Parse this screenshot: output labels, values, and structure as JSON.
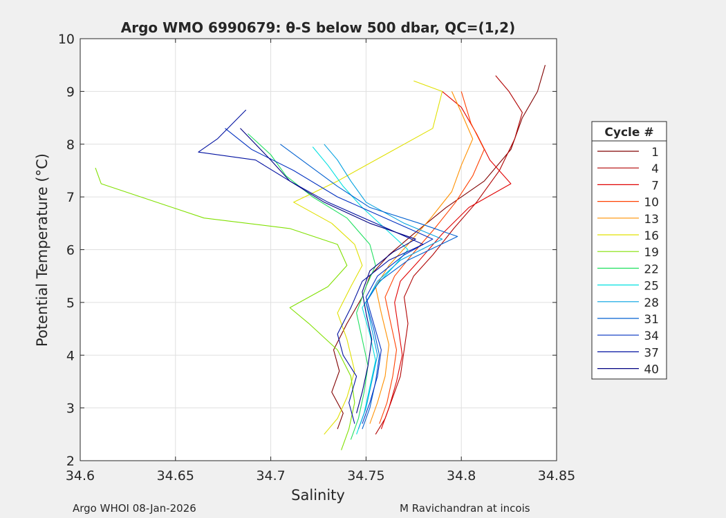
{
  "chart_data": {
    "type": "line",
    "title": "Argo WMO 6990679: θ-S below 500 dbar,  QC=(1,2)",
    "xlabel": "Salinity",
    "ylabel": "Potential Temperature (°C)",
    "xlim": [
      34.6,
      34.85
    ],
    "ylim": [
      2,
      10
    ],
    "xticks": [
      "34.6",
      "34.65",
      "34.7",
      "34.75",
      "34.8",
      "34.85"
    ],
    "yticks": [
      "2",
      "3",
      "4",
      "5",
      "6",
      "7",
      "8",
      "9",
      "10"
    ],
    "grid": true,
    "legend": {
      "title": "Cycle #",
      "placement": "outside-right"
    },
    "series": [
      {
        "name": "1",
        "color": "#800000",
        "points": [
          [
            34.735,
            2.6
          ],
          [
            34.738,
            2.9
          ],
          [
            34.732,
            3.3
          ],
          [
            34.736,
            3.7
          ],
          [
            34.733,
            4.1
          ],
          [
            34.74,
            4.6
          ],
          [
            34.748,
            5.1
          ],
          [
            34.752,
            5.5
          ],
          [
            34.762,
            5.9
          ],
          [
            34.775,
            6.3
          ],
          [
            34.792,
            6.8
          ],
          [
            34.812,
            7.3
          ],
          [
            34.826,
            7.9
          ],
          [
            34.832,
            8.5
          ],
          [
            34.84,
            9.0
          ],
          [
            34.844,
            9.5
          ]
        ]
      },
      {
        "name": "4",
        "color": "#b00000",
        "points": [
          [
            34.755,
            2.5
          ],
          [
            34.76,
            2.8
          ],
          [
            34.764,
            3.2
          ],
          [
            34.768,
            3.6
          ],
          [
            34.77,
            4.1
          ],
          [
            34.772,
            4.6
          ],
          [
            34.77,
            5.1
          ],
          [
            34.775,
            5.5
          ],
          [
            34.785,
            5.9
          ],
          [
            34.796,
            6.4
          ],
          [
            34.808,
            6.9
          ],
          [
            34.82,
            7.5
          ],
          [
            34.828,
            8.1
          ],
          [
            34.832,
            8.6
          ],
          [
            34.825,
            9.0
          ],
          [
            34.818,
            9.3
          ]
        ]
      },
      {
        "name": "7",
        "color": "#e00000",
        "points": [
          [
            34.758,
            2.6
          ],
          [
            34.762,
            3.0
          ],
          [
            34.766,
            3.5
          ],
          [
            34.769,
            4.0
          ],
          [
            34.767,
            4.5
          ],
          [
            34.765,
            5.0
          ],
          [
            34.768,
            5.4
          ],
          [
            34.778,
            5.8
          ],
          [
            34.79,
            6.3
          ],
          [
            34.804,
            6.8
          ],
          [
            34.826,
            7.25
          ],
          [
            34.815,
            7.7
          ],
          [
            34.808,
            8.2
          ],
          [
            34.8,
            8.7
          ],
          [
            34.79,
            9.0
          ]
        ]
      },
      {
        "name": "10",
        "color": "#ff4000",
        "points": [
          [
            34.757,
            2.7
          ],
          [
            34.761,
            3.1
          ],
          [
            34.764,
            3.6
          ],
          [
            34.766,
            4.1
          ],
          [
            34.763,
            4.6
          ],
          [
            34.76,
            5.1
          ],
          [
            34.765,
            5.5
          ],
          [
            34.774,
            5.9
          ],
          [
            34.786,
            6.4
          ],
          [
            34.797,
            6.9
          ],
          [
            34.806,
            7.4
          ],
          [
            34.812,
            7.9
          ],
          [
            34.805,
            8.4
          ],
          [
            34.8,
            9.0
          ]
        ]
      },
      {
        "name": "13",
        "color": "#ff9000",
        "points": [
          [
            34.752,
            2.7
          ],
          [
            34.756,
            3.1
          ],
          [
            34.76,
            3.6
          ],
          [
            34.762,
            4.2
          ],
          [
            34.758,
            4.8
          ],
          [
            34.755,
            5.3
          ],
          [
            34.762,
            5.7
          ],
          [
            34.772,
            6.1
          ],
          [
            34.784,
            6.6
          ],
          [
            34.795,
            7.1
          ],
          [
            34.8,
            7.6
          ],
          [
            34.806,
            8.1
          ],
          [
            34.8,
            8.6
          ],
          [
            34.795,
            9.0
          ]
        ]
      },
      {
        "name": "16",
        "color": "#e0e000",
        "points": [
          [
            34.728,
            2.5
          ],
          [
            34.735,
            2.8
          ],
          [
            34.74,
            3.2
          ],
          [
            34.744,
            3.7
          ],
          [
            34.74,
            4.3
          ],
          [
            34.735,
            4.8
          ],
          [
            34.742,
            5.3
          ],
          [
            34.748,
            5.7
          ],
          [
            34.744,
            6.1
          ],
          [
            34.732,
            6.5
          ],
          [
            34.712,
            6.9
          ],
          [
            34.735,
            7.3
          ],
          [
            34.76,
            7.8
          ],
          [
            34.785,
            8.3
          ],
          [
            34.79,
            9.0
          ],
          [
            34.775,
            9.2
          ]
        ]
      },
      {
        "name": "19",
        "color": "#80e000",
        "points": [
          [
            34.737,
            2.2
          ],
          [
            34.741,
            2.6
          ],
          [
            34.744,
            3.1
          ],
          [
            34.742,
            3.6
          ],
          [
            34.735,
            4.1
          ],
          [
            34.72,
            4.6
          ],
          [
            34.71,
            4.9
          ],
          [
            34.73,
            5.3
          ],
          [
            34.74,
            5.7
          ],
          [
            34.735,
            6.1
          ],
          [
            34.71,
            6.4
          ],
          [
            34.665,
            6.6
          ],
          [
            34.611,
            7.25
          ],
          [
            34.608,
            7.55
          ]
        ]
      },
      {
        "name": "22",
        "color": "#20e060",
        "points": [
          [
            34.742,
            2.4
          ],
          [
            34.746,
            2.8
          ],
          [
            34.749,
            3.3
          ],
          [
            34.751,
            3.8
          ],
          [
            34.748,
            4.3
          ],
          [
            34.745,
            4.8
          ],
          [
            34.75,
            5.3
          ],
          [
            34.755,
            5.7
          ],
          [
            34.752,
            6.1
          ],
          [
            34.74,
            6.6
          ],
          [
            34.722,
            7.0
          ],
          [
            34.708,
            7.4
          ],
          [
            34.7,
            7.8
          ],
          [
            34.688,
            8.2
          ]
        ]
      },
      {
        "name": "25",
        "color": "#00e0e0",
        "points": [
          [
            34.745,
            2.5
          ],
          [
            34.749,
            2.9
          ],
          [
            34.752,
            3.4
          ],
          [
            34.755,
            3.9
          ],
          [
            34.752,
            4.4
          ],
          [
            34.748,
            4.9
          ],
          [
            34.755,
            5.3
          ],
          [
            34.765,
            5.7
          ],
          [
            34.772,
            6.0
          ],
          [
            34.76,
            6.4
          ],
          [
            34.748,
            6.8
          ],
          [
            34.738,
            7.2
          ],
          [
            34.73,
            7.6
          ],
          [
            34.722,
            7.95
          ]
        ]
      },
      {
        "name": "28",
        "color": "#00a0e0",
        "points": [
          [
            34.746,
            2.6
          ],
          [
            34.75,
            3.0
          ],
          [
            34.753,
            3.5
          ],
          [
            34.756,
            4.0
          ],
          [
            34.753,
            4.5
          ],
          [
            34.75,
            5.0
          ],
          [
            34.756,
            5.4
          ],
          [
            34.768,
            5.8
          ],
          [
            34.79,
            6.2
          ],
          [
            34.77,
            6.5
          ],
          [
            34.75,
            6.9
          ],
          [
            34.742,
            7.3
          ],
          [
            34.735,
            7.7
          ],
          [
            34.728,
            8.0
          ]
        ]
      },
      {
        "name": "31",
        "color": "#0060d0",
        "points": [
          [
            34.748,
            2.6
          ],
          [
            34.752,
            3.0
          ],
          [
            34.755,
            3.5
          ],
          [
            34.757,
            4.0
          ],
          [
            34.754,
            4.5
          ],
          [
            34.75,
            5.0
          ],
          [
            34.757,
            5.4
          ],
          [
            34.772,
            5.8
          ],
          [
            34.798,
            6.25
          ],
          [
            34.778,
            6.5
          ],
          [
            34.752,
            6.8
          ],
          [
            34.735,
            7.2
          ],
          [
            34.72,
            7.6
          ],
          [
            34.705,
            8.0
          ]
        ]
      },
      {
        "name": "34",
        "color": "#0030c0",
        "points": [
          [
            34.748,
            2.7
          ],
          [
            34.752,
            3.1
          ],
          [
            34.756,
            3.6
          ],
          [
            34.758,
            4.1
          ],
          [
            34.754,
            4.6
          ],
          [
            34.75,
            5.1
          ],
          [
            34.756,
            5.5
          ],
          [
            34.77,
            5.9
          ],
          [
            34.785,
            6.2
          ],
          [
            34.76,
            6.6
          ],
          [
            34.735,
            7.0
          ],
          [
            34.712,
            7.5
          ],
          [
            34.69,
            7.9
          ],
          [
            34.676,
            8.3
          ]
        ]
      },
      {
        "name": "37",
        "color": "#0010a0",
        "points": [
          [
            34.744,
            2.7
          ],
          [
            34.741,
            3.1
          ],
          [
            34.745,
            3.6
          ],
          [
            34.738,
            4.0
          ],
          [
            34.735,
            4.4
          ],
          [
            34.742,
            4.9
          ],
          [
            34.748,
            5.4
          ],
          [
            34.762,
            5.8
          ],
          [
            34.78,
            6.1
          ],
          [
            34.755,
            6.5
          ],
          [
            34.73,
            6.9
          ],
          [
            34.71,
            7.3
          ],
          [
            34.692,
            7.7
          ],
          [
            34.662,
            7.85
          ],
          [
            34.672,
            8.1
          ],
          [
            34.687,
            8.65
          ]
        ]
      },
      {
        "name": "40",
        "color": "#000080",
        "points": [
          [
            34.745,
            2.9
          ],
          [
            34.748,
            3.3
          ],
          [
            34.751,
            3.8
          ],
          [
            34.753,
            4.3
          ],
          [
            34.75,
            4.8
          ],
          [
            34.748,
            5.2
          ],
          [
            34.752,
            5.6
          ],
          [
            34.764,
            5.95
          ],
          [
            34.776,
            6.2
          ],
          [
            34.752,
            6.5
          ],
          [
            34.728,
            6.9
          ],
          [
            34.71,
            7.3
          ],
          [
            34.7,
            7.7
          ],
          [
            34.684,
            8.3
          ]
        ]
      }
    ]
  },
  "footer": {
    "left": "Argo WHOI 08-Jan-2026",
    "right": "M Ravichandran at incois"
  }
}
